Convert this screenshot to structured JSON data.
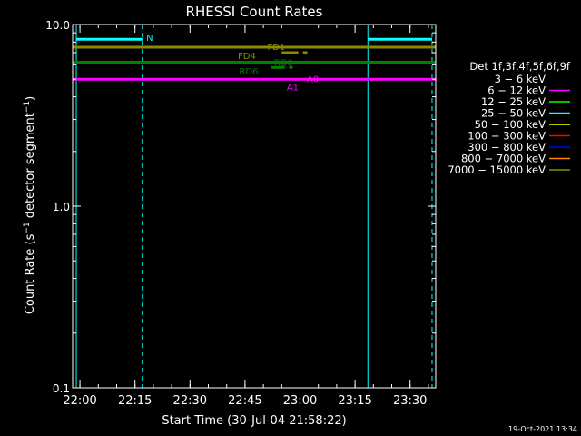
{
  "chart_data": {
    "type": "line",
    "title": "RHESSI Count Rates",
    "xlabel": "Start Time (30-Jul-04 21:58:22)",
    "ylabel_main": "Count Rate (s",
    "ylabel_sup1": "−1",
    "ylabel_mid": " detector segment",
    "ylabel_sup2": "−1",
    "ylabel_end": ")",
    "y_scale": "log",
    "ylim": [
      0.1,
      10.0
    ],
    "xlim_minutes_from_start": [
      -2,
      97
    ],
    "x_ticks": [
      {
        "label": "22:00",
        "minutes": 0
      },
      {
        "label": "22:15",
        "minutes": 15
      },
      {
        "label": "22:30",
        "minutes": 30
      },
      {
        "label": "22:45",
        "minutes": 45
      },
      {
        "label": "23:00",
        "minutes": 60
      },
      {
        "label": "23:15",
        "minutes": 75
      },
      {
        "label": "23:30",
        "minutes": 90
      }
    ],
    "y_ticks": [
      {
        "label": "10.0",
        "value": 10.0
      },
      {
        "label": "1.0",
        "value": 1.0
      },
      {
        "label": "0.1",
        "value": 0.1
      }
    ],
    "legend": {
      "placement": "right",
      "title": "Det 1f,3f,4f,5f,6f,9f",
      "entries": [
        {
          "label": "3 − 6 keV",
          "color": "#000000"
        },
        {
          "label": "6 − 12 keV",
          "color": "#ff00ff"
        },
        {
          "label": "12 − 25 keV",
          "color": "#00ff00"
        },
        {
          "label": "25 − 50 keV",
          "color": "#00ffff"
        },
        {
          "label": "50 − 100 keV",
          "color": "#ffff00"
        },
        {
          "label": "100 − 300 keV",
          "color": "#ff0000"
        },
        {
          "label": "300 − 800 keV",
          "color": "#0000ff"
        },
        {
          "label": "800 − 7000 keV",
          "color": "#ff8800"
        },
        {
          "label": "7000 − 15000 keV",
          "color": "#8b8b00"
        }
      ]
    },
    "series": [
      {
        "color": "#ff00ff",
        "x": [
          -2,
          97
        ],
        "y": [
          5.0,
          5.0
        ],
        "dash": false
      },
      {
        "color": "#008000",
        "x": [
          -2,
          97
        ],
        "y": [
          6.2,
          6.2
        ],
        "dash": false
      },
      {
        "color": "#8b8b00",
        "x": [
          -2,
          97
        ],
        "y": [
          7.5,
          7.5
        ],
        "dash": false
      },
      {
        "color": "#00ffff",
        "x": [
          -1,
          17
        ],
        "y": [
          8.3,
          8.3
        ],
        "dash": false
      },
      {
        "color": "#00ffff",
        "x": [
          78.5,
          96
        ],
        "y": [
          8.3,
          8.3
        ],
        "dash": false
      }
    ],
    "flag_bars": [
      {
        "color": "#8b8b00",
        "x": [
          55,
          62
        ],
        "y": 7.0
      },
      {
        "color": "#008000",
        "x": [
          52,
          58
        ],
        "y": 5.8
      }
    ],
    "vlines": [
      {
        "color": "#00ffff",
        "minutes": -1,
        "dash": false
      },
      {
        "color": "#00ffff",
        "minutes": 17,
        "dash": true
      },
      {
        "color": "#00ffff",
        "minutes": 78.5,
        "dash": false
      },
      {
        "color": "#00ffff",
        "minutes": 96,
        "dash": true
      }
    ],
    "annotations": [
      {
        "text": "N",
        "color": "#00ffff",
        "x": 19,
        "y": 8.5
      },
      {
        "text": "FD1",
        "color": "#8b8b00",
        "x": 53.5,
        "y": 7.6
      },
      {
        "text": "FD4",
        "color": "#8b8b00",
        "x": 45.5,
        "y": 6.75
      },
      {
        "text": "RD0",
        "color": "#008000",
        "x": 55.5,
        "y": 6.2
      },
      {
        "text": "RD6",
        "color": "#008000",
        "x": 46,
        "y": 5.55
      },
      {
        "text": "A0",
        "color": "#ff00ff",
        "x": 63.5,
        "y": 5.05
      },
      {
        "text": "A1",
        "color": "#ff00ff",
        "x": 58,
        "y": 4.55
      }
    ],
    "grid": false,
    "timestamp": "19-Oct-2021 13:34"
  }
}
